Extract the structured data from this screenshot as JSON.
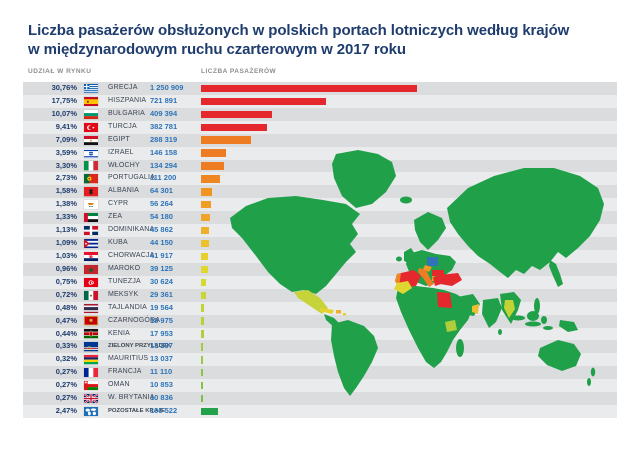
{
  "title": {
    "line1": "Liczba pasażerów obsłużonych w polskich portach lotniczych według krajów",
    "line2": "w międzynarodowym ruchu czarterowym w 2017 roku"
  },
  "columns": {
    "left": "UDZIAŁ W RYNKU",
    "right": "LICZBA PASAŻERÓW"
  },
  "rows": [
    {
      "share": "30,76%",
      "flag": "flag-greece",
      "country": "GRECJA",
      "passengers": "1 250 909",
      "color": "#e5282d"
    },
    {
      "share": "17,75%",
      "flag": "flag-spain",
      "country": "HISZPANIA",
      "passengers": "721 891",
      "color": "#e5282d"
    },
    {
      "share": "10,07%",
      "flag": "flag-bulgaria",
      "country": "BUŁGARIA",
      "passengers": "409 394",
      "color": "#e5282d"
    },
    {
      "share": "9,41%",
      "flag": "flag-turkey",
      "country": "TURCJA",
      "passengers": "382 781",
      "color": "#e5282d"
    },
    {
      "share": "7,09%",
      "flag": "flag-egypt",
      "country": "EGIPT",
      "passengers": "288 319",
      "color": "#ed7c23"
    },
    {
      "share": "3,59%",
      "flag": "flag-israel",
      "country": "IZRAEL",
      "passengers": "146 158",
      "color": "#ed7c23"
    },
    {
      "share": "3,30%",
      "flag": "flag-italy",
      "country": "WŁOCHY",
      "passengers": "134 294",
      "color": "#ed7c23"
    },
    {
      "share": "2,73%",
      "flag": "flag-portugal",
      "country": "PORTUGALIA",
      "passengers": "111 200",
      "color": "#ee8722"
    },
    {
      "share": "1,58%",
      "flag": "flag-albania",
      "country": "ALBANIA",
      "passengers": "64 301",
      "color": "#f09422"
    },
    {
      "share": "1,38%",
      "flag": "flag-cyprus",
      "country": "CYPR",
      "passengers": "56 264",
      "color": "#f09e25"
    },
    {
      "share": "1,33%",
      "flag": "flag-uae",
      "country": "ZEA",
      "passengers": "54 180",
      "color": "#efa527"
    },
    {
      "share": "1,13%",
      "flag": "flag-dominican-republic",
      "country": "DOMINIKANA",
      "passengers": "45 862",
      "color": "#eeb02a"
    },
    {
      "share": "1,09%",
      "flag": "flag-cuba",
      "country": "KUBA",
      "passengers": "44 150",
      "color": "#ecbf2c"
    },
    {
      "share": "1,03%",
      "flag": "flag-croatia",
      "country": "CHORWACJA",
      "passengers": "41 917",
      "color": "#e8cf2e"
    },
    {
      "share": "0,96%",
      "flag": "flag-morocco",
      "country": "MAROKO",
      "passengers": "39 125",
      "color": "#e0d630"
    },
    {
      "share": "0,75%",
      "flag": "flag-tunisia",
      "country": "TUNEZJA",
      "passengers": "30 624",
      "color": "#d5d832"
    },
    {
      "share": "0,72%",
      "flag": "flag-mexico",
      "country": "MEKSYK",
      "passengers": "29 361",
      "color": "#cbd634"
    },
    {
      "share": "0,48%",
      "flag": "flag-thailand",
      "country": "TAJLANDIA",
      "passengers": "19 564",
      "color": "#c2d336"
    },
    {
      "share": "0,47%",
      "flag": "flag-montenegro",
      "country": "CZARNOGÓRA",
      "passengers": "18 975",
      "color": "#b9d138"
    },
    {
      "share": "0,44%",
      "flag": "flag-kenya",
      "country": "KENIA",
      "passengers": "17 953",
      "color": "#afce3a"
    },
    {
      "share": "0,33%",
      "flag": "flag-cape-verde",
      "country": "ZIELONY PRZYLĄDEK",
      "passengers": "13 297",
      "color": "#a4cb3d"
    },
    {
      "share": "0,32%",
      "flag": "flag-mauritius",
      "country": "MAURITIUS",
      "passengers": "13 037",
      "color": "#9ac940"
    },
    {
      "share": "0,27%",
      "flag": "flag-france",
      "country": "FRANCJA",
      "passengers": "11 110",
      "color": "#8fc543"
    },
    {
      "share": "0,27%",
      "flag": "flag-oman",
      "country": "OMAN",
      "passengers": "10 853",
      "color": "#85c246"
    },
    {
      "share": "0,27%",
      "flag": "flag-uk",
      "country": "W. BRYTANIA",
      "passengers": "10 836",
      "color": "#7bbf49"
    },
    {
      "share": "2,47%",
      "flag": "flag-world",
      "country": "POZOSTAŁE KRAJE",
      "passengers": "100 522",
      "color": "#23a14b"
    }
  ],
  "theme": {
    "stripe_dark": "#dbdcde",
    "stripe_light": "#eaebec",
    "title_color": "#1e3c6d",
    "share_color": "#1e3c6d",
    "country_color": "#3c4654",
    "number_color": "#2d74b8",
    "header_color": "#8b8d90",
    "map_land_color": "#21a04a",
    "map_source_color": "#2e74b6"
  },
  "chart_data": {
    "type": "bar",
    "orientation": "horizontal",
    "title": "Liczba pasażerów obsłużonych w polskich portach lotniczych według krajów w międzynarodowym ruchu czarterowym w 2017 roku",
    "xlabel": "LICZBA PASAŻERÓW",
    "ylabel": "UDZIAŁ W RYNKU",
    "categories": [
      "GRECJA",
      "HISZPANIA",
      "BUŁGARIA",
      "TURCJA",
      "EGIPT",
      "IZRAEL",
      "WŁOCHY",
      "PORTUGALIA",
      "ALBANIA",
      "CYPR",
      "ZEA",
      "DOMINIKANA",
      "KUBA",
      "CHORWACJA",
      "MAROKO",
      "TUNEZJA",
      "MEKSYK",
      "TAJLANDIA",
      "CZARNOGÓRA",
      "KENIA",
      "ZIELONY PRZYLĄDEK",
      "MAURITIUS",
      "FRANCJA",
      "OMAN",
      "W. BRYTANIA",
      "POZOSTAŁE KRAJE"
    ],
    "values": [
      1250909,
      721891,
      409394,
      382781,
      288319,
      146158,
      134294,
      111200,
      64301,
      56264,
      54180,
      45862,
      44150,
      41917,
      39125,
      30624,
      29361,
      19564,
      18975,
      17953,
      13297,
      13037,
      11110,
      10853,
      10836,
      100522
    ],
    "market_share_percent": [
      30.76,
      17.75,
      10.07,
      9.41,
      7.09,
      3.59,
      3.3,
      2.73,
      1.58,
      1.38,
      1.33,
      1.13,
      1.09,
      1.03,
      0.96,
      0.75,
      0.72,
      0.48,
      0.47,
      0.44,
      0.33,
      0.32,
      0.27,
      0.27,
      0.27,
      2.47
    ],
    "xlim": [
      0,
      1250909
    ],
    "grid": false,
    "legend": false,
    "bar_color_scale": "red (largest) through orange and yellow to yellow-green (smallest); green for aggregated rest"
  }
}
